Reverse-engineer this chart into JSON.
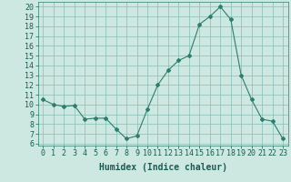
{
  "x": [
    0,
    1,
    2,
    3,
    4,
    5,
    6,
    7,
    8,
    9,
    10,
    11,
    12,
    13,
    14,
    15,
    16,
    17,
    18,
    19,
    20,
    21,
    22,
    23
  ],
  "y": [
    10.5,
    10.0,
    9.8,
    9.9,
    8.5,
    8.6,
    8.6,
    7.5,
    6.5,
    6.8,
    9.5,
    12.0,
    13.5,
    14.5,
    15.0,
    18.2,
    19.0,
    20.0,
    18.7,
    13.0,
    10.5,
    8.5,
    8.3,
    6.5
  ],
  "xlabel": "Humidex (Indice chaleur)",
  "xlim": [
    -0.5,
    23.5
  ],
  "ylim": [
    5.8,
    20.5
  ],
  "yticks": [
    6,
    7,
    8,
    9,
    10,
    11,
    12,
    13,
    14,
    15,
    16,
    17,
    18,
    19,
    20
  ],
  "xticks": [
    0,
    1,
    2,
    3,
    4,
    5,
    6,
    7,
    8,
    9,
    10,
    11,
    12,
    13,
    14,
    15,
    16,
    17,
    18,
    19,
    20,
    21,
    22,
    23
  ],
  "line_color": "#2e7d6e",
  "marker": "D",
  "marker_size": 2,
  "bg_color": "#cce8e0",
  "grid_color": "#88bdb5",
  "axis_color": "#2e7d6e",
  "font_color": "#1a5c52",
  "font_size": 6,
  "xlabel_fontsize": 7
}
